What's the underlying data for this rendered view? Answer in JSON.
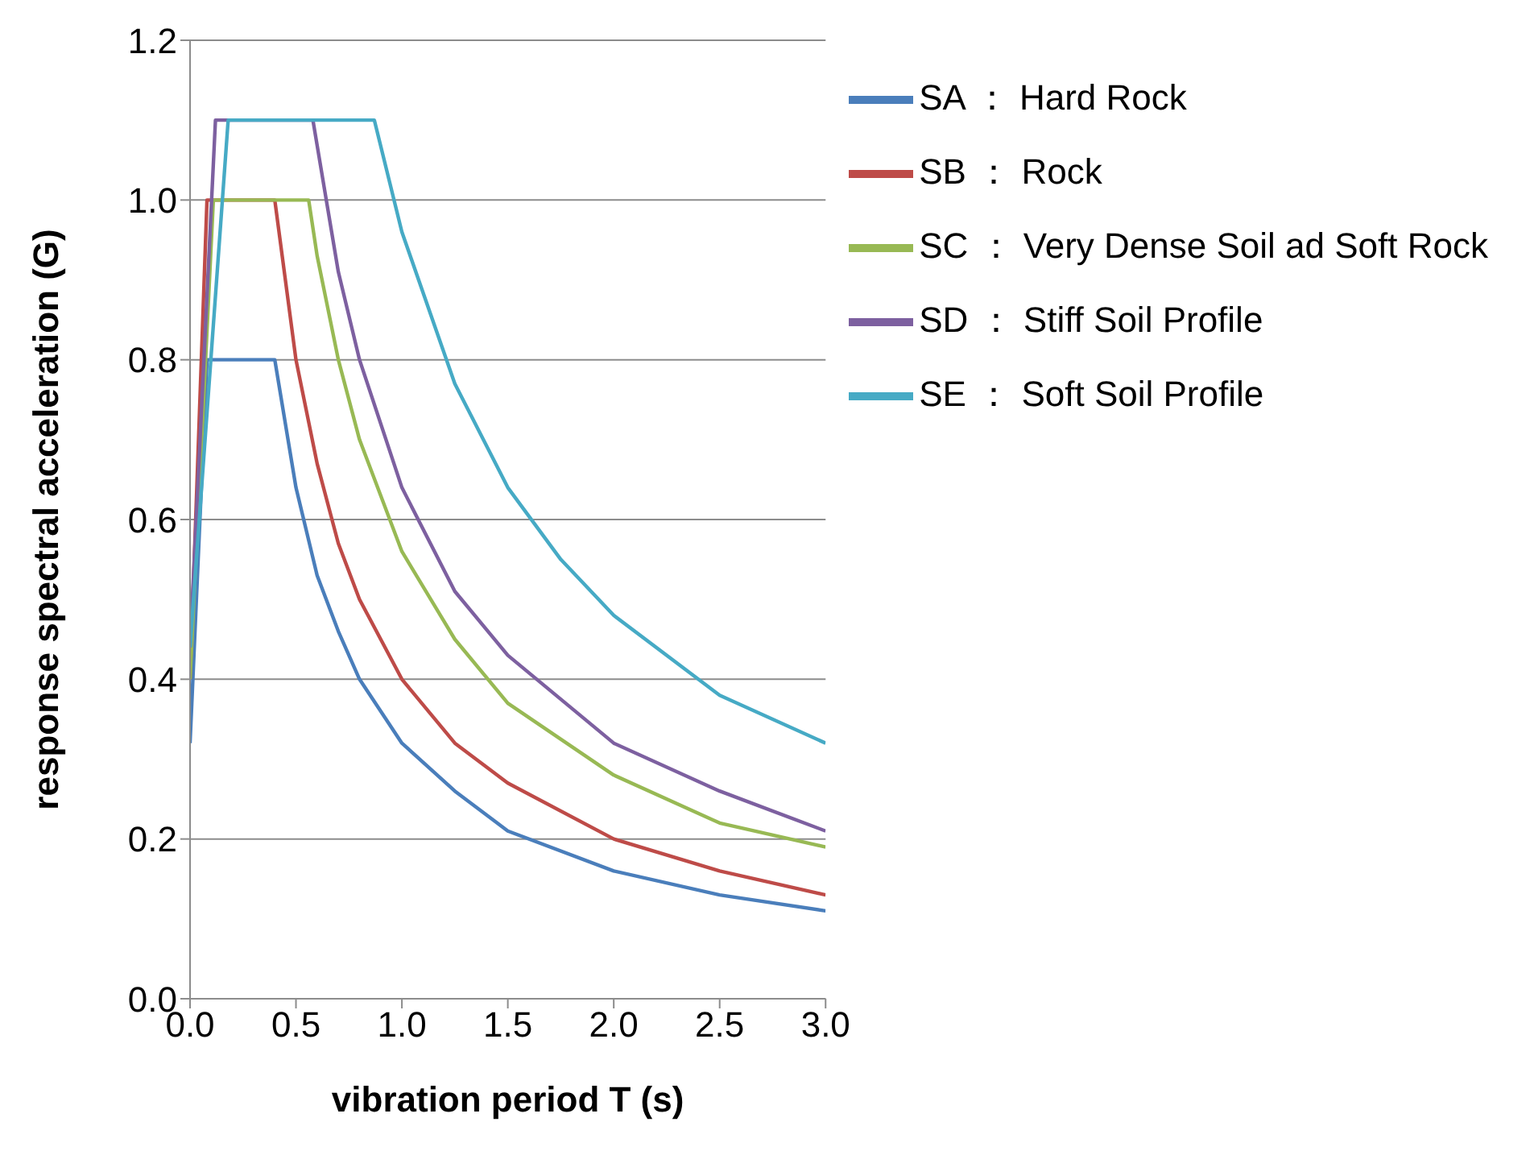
{
  "chart_data": {
    "type": "line",
    "xlabel": "vibration period T (s)",
    "ylabel": "response spectral acceleration (G)",
    "xlim": [
      0,
      3
    ],
    "xticks": [
      {
        "value": 0,
        "label": "0.0"
      },
      {
        "value": 0.5,
        "label": "0.5"
      },
      {
        "value": 1,
        "label": "1.0"
      },
      {
        "value": 1.5,
        "label": "1.5"
      },
      {
        "value": 2,
        "label": "2.0"
      },
      {
        "value": 2.5,
        "label": "2.5"
      },
      {
        "value": 3,
        "label": "3.0"
      }
    ],
    "ylim": [
      0,
      1.2
    ],
    "yticks": [
      {
        "value": 0,
        "label": "0.0"
      },
      {
        "value": 0.2,
        "label": "0.2"
      },
      {
        "value": 0.4,
        "label": "0.4"
      },
      {
        "value": 0.6,
        "label": "0.6"
      },
      {
        "value": 0.8,
        "label": "0.8"
      },
      {
        "value": 1,
        "label": "1.0"
      },
      {
        "value": 1.2,
        "label": "1.2"
      }
    ],
    "grid": "y",
    "legend": "top right",
    "marker": "none",
    "line_style": "solid",
    "series": [
      {
        "name": "SA ： Hard Rock",
        "color": "#4a7ebb",
        "x": [
          0,
          0.08,
          0.4,
          0.5,
          0.6,
          0.7,
          0.8,
          1.0,
          1.25,
          1.5,
          2.0,
          2.5,
          3.0
        ],
        "values": [
          0.32,
          0.8,
          0.8,
          0.64,
          0.53,
          0.46,
          0.4,
          0.32,
          0.26,
          0.21,
          0.16,
          0.13,
          0.11
        ]
      },
      {
        "name": "SB ： Rock",
        "color": "#be4b48",
        "x": [
          0,
          0.08,
          0.4,
          0.5,
          0.6,
          0.7,
          0.8,
          1.0,
          1.25,
          1.5,
          2.0,
          2.5,
          3.0
        ],
        "values": [
          0.4,
          1.0,
          1.0,
          0.8,
          0.67,
          0.57,
          0.5,
          0.4,
          0.32,
          0.27,
          0.2,
          0.16,
          0.13
        ]
      },
      {
        "name": "SC ： Very Dense Soil ad Soft Rock",
        "color": "#98b954",
        "x": [
          0,
          0.11,
          0.56,
          0.6,
          0.7,
          0.8,
          1.0,
          1.25,
          1.5,
          2.0,
          2.5,
          3.0
        ],
        "values": [
          0.4,
          1.0,
          1.0,
          0.93,
          0.8,
          0.7,
          0.56,
          0.45,
          0.37,
          0.28,
          0.22,
          0.19
        ]
      },
      {
        "name": "SD ： Stiff Soil Profile",
        "color": "#7d60a0",
        "x": [
          0,
          0.12,
          0.58,
          0.7,
          0.8,
          1.0,
          1.25,
          1.5,
          2.0,
          2.5,
          3.0
        ],
        "values": [
          0.44,
          1.1,
          1.1,
          0.91,
          0.8,
          0.64,
          0.51,
          0.43,
          0.32,
          0.26,
          0.21
        ]
      },
      {
        "name": "SE ： Soft Soil Profile",
        "color": "#46aac5",
        "x": [
          0,
          0.18,
          0.87,
          1.0,
          1.25,
          1.5,
          1.75,
          2.0,
          2.5,
          3.0
        ],
        "values": [
          0.44,
          1.1,
          1.1,
          0.96,
          0.77,
          0.64,
          0.55,
          0.48,
          0.38,
          0.32
        ]
      }
    ]
  }
}
